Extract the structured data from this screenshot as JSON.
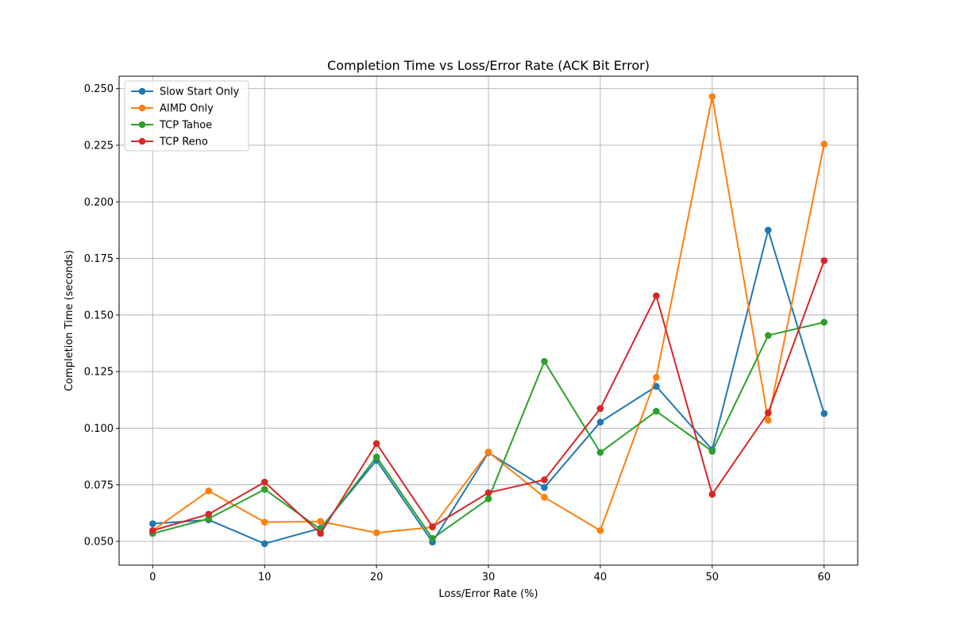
{
  "chart_data": {
    "type": "line",
    "title": "Completion Time vs Loss/Error Rate (ACK Bit Error)",
    "xlabel": "Loss/Error Rate (%)",
    "ylabel": "Completion Time (seconds)",
    "xlim": [
      -3,
      63
    ],
    "ylim": [
      0.0395,
      0.2555
    ],
    "xticks": [
      0,
      10,
      20,
      30,
      40,
      50,
      60
    ],
    "yticks": [
      0.05,
      0.075,
      0.1,
      0.125,
      0.15,
      0.175,
      0.2,
      0.225,
      0.25
    ],
    "xtick_labels": [
      "0",
      "10",
      "20",
      "30",
      "40",
      "50",
      "60"
    ],
    "ytick_labels": [
      "0.050",
      "0.075",
      "0.100",
      "0.125",
      "0.150",
      "0.175",
      "0.200",
      "0.225",
      "0.250"
    ],
    "grid": true,
    "legend_position": "top-left",
    "x": [
      0,
      5,
      10,
      15,
      20,
      25,
      30,
      35,
      40,
      45,
      50,
      55,
      60
    ],
    "series": [
      {
        "name": "Slow Start Only",
        "color": "#1f77b4",
        "values": [
          0.0578,
          0.0595,
          0.049,
          0.0558,
          0.0858,
          0.0497,
          0.0892,
          0.0738,
          0.1027,
          0.1185,
          0.0905,
          0.1875,
          0.1065
        ]
      },
      {
        "name": "AIMD Only",
        "color": "#ff7f0e",
        "values": [
          0.0548,
          0.0723,
          0.0585,
          0.0588,
          0.0538,
          0.0563,
          0.0895,
          0.0695,
          0.0548,
          0.1225,
          0.2465,
          0.1035,
          0.2255
        ]
      },
      {
        "name": "TCP Tahoe",
        "color": "#2ca02c",
        "values": [
          0.0535,
          0.06,
          0.073,
          0.0553,
          0.0873,
          0.0513,
          0.0688,
          0.1295,
          0.0893,
          0.1075,
          0.0898,
          0.141,
          0.1468
        ]
      },
      {
        "name": "TCP Reno",
        "color": "#d62728",
        "values": [
          0.0548,
          0.062,
          0.0762,
          0.0535,
          0.0932,
          0.0565,
          0.0715,
          0.0772,
          0.1087,
          0.1585,
          0.0708,
          0.1068,
          0.174
        ]
      }
    ]
  }
}
